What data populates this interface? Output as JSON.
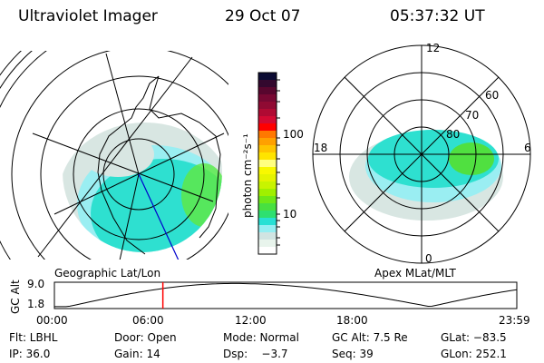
{
  "header": {
    "instrument": "Ultraviolet Imager",
    "date": "29 Oct 07",
    "time": "05:37:32 UT"
  },
  "left_panel": {
    "label": "Geographic Lat/Lon"
  },
  "right_panel": {
    "label": "Apex MLat/MLT",
    "mlt_labels": {
      "top": "12",
      "left": "18",
      "right": "6",
      "bottom": "0"
    },
    "lat_labels": [
      "60",
      "70",
      "80"
    ]
  },
  "colorbar": {
    "unit_label": "photon cm⁻²s⁻¹",
    "tick_labels": [
      "100",
      "10"
    ],
    "colors": [
      "#0b0b33",
      "#33082e",
      "#58062e",
      "#780833",
      "#900a33",
      "#b00a33",
      "#d40a33",
      "#ff0000",
      "#ff7800",
      "#ffa000",
      "#ffc400",
      "#ffe400",
      "#ffff80",
      "#f8f800",
      "#e4f400",
      "#c8f400",
      "#a0f000",
      "#6ee818",
      "#48e040",
      "#2ee070",
      "#28e0d4",
      "#94eef2",
      "#d0e4e2",
      "#e8f4ec",
      "#ffffff"
    ]
  },
  "timeline": {
    "y_label": "GC Alt",
    "y_ticks": [
      "9.0",
      "1.8"
    ],
    "x_ticks": [
      "00:00",
      "06:00",
      "12:00",
      "18:00",
      "23:59"
    ],
    "current_time_hours": 5.63,
    "marker_color": "#ff0000"
  },
  "status": {
    "row1": [
      "Flt: LBHL",
      "Door: Open",
      "Mode: Normal",
      "GC Alt: 7.5 Re",
      "GLat: −83.5"
    ],
    "row2": [
      "IP: 36.0",
      "Gain: 14",
      "Dsp:    −3.7",
      "Seq: 39",
      "GLon: 252.1"
    ]
  }
}
